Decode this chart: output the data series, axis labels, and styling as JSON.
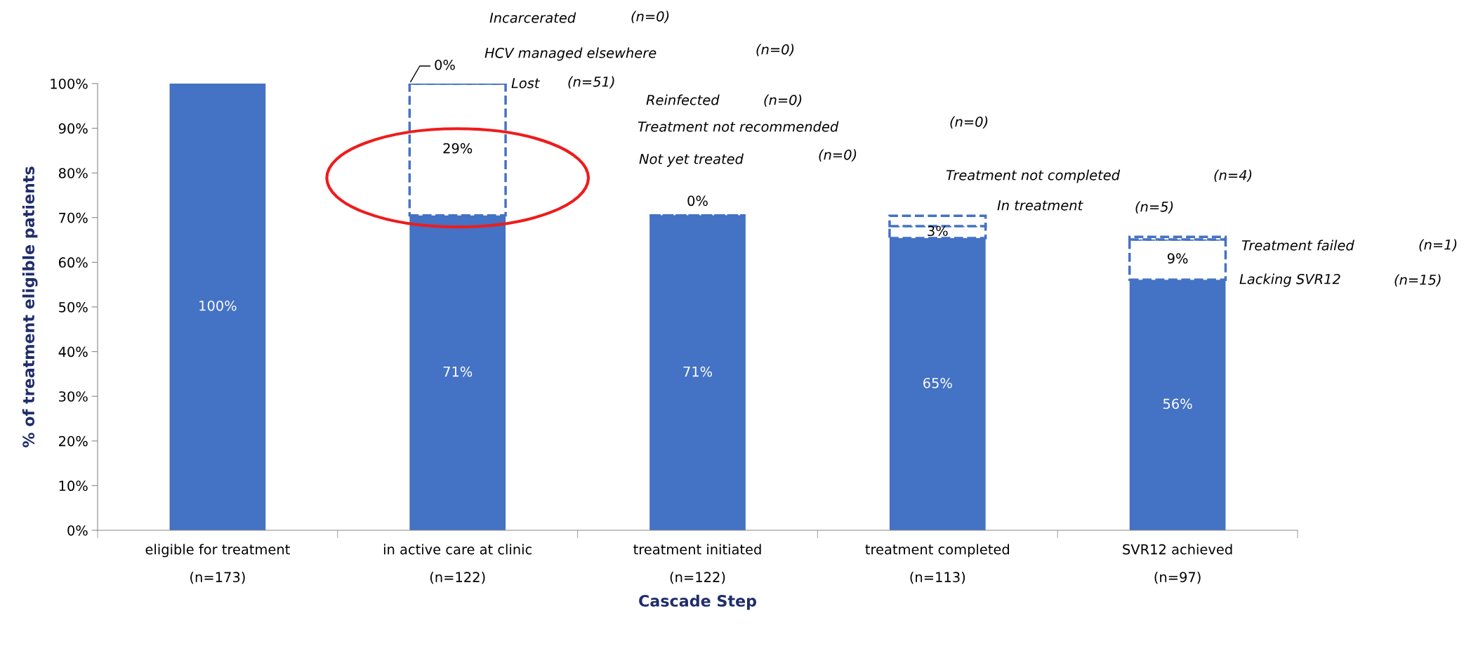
{
  "chart_data": {
    "type": "bar",
    "stacked": true,
    "xlabel": "Cascade Step",
    "ylabel": "% of treatment eligible patients",
    "categories": [
      "eligible for treatment\n(n=173)",
      "in active care at clinic\n(n=122)",
      "treatment initiated\n(n=122)",
      "treatment completed\n(n=113)",
      "SVR12 achieved\n(n=97)"
    ],
    "series": [
      {
        "color": "#4472c4",
        "line_style": "solid",
        "values": [
          100,
          70.5,
          70.5,
          65.4,
          56.1
        ],
        "value_labels": [
          "100%",
          "71%",
          "71%",
          "65%",
          "56%"
        ]
      },
      {
        "color": "#4472c4",
        "line_style": "dashed",
        "values": [
          null,
          29.5,
          0,
          2.7,
          9.0
        ],
        "value_labels": [
          null,
          "29%",
          "0%",
          "3%",
          "9%"
        ]
      },
      {
        "color": "#4472c4",
        "line_style": "dashed",
        "values": [
          null,
          0,
          null,
          2.3,
          0.6
        ],
        "value_labels": [
          null,
          "0%",
          null,
          null,
          null
        ]
      }
    ],
    "ylim": [
      0,
      100
    ],
    "yticks": [
      {
        "value": 0,
        "label": "0%"
      },
      {
        "value": 10,
        "label": "10%"
      },
      {
        "value": 20,
        "label": "20%"
      },
      {
        "value": 30,
        "label": "30%"
      },
      {
        "value": 40,
        "label": "40%"
      },
      {
        "value": 50,
        "label": "50%"
      },
      {
        "value": 60,
        "label": "60%"
      },
      {
        "value": 70,
        "label": "70%"
      },
      {
        "value": 80,
        "label": "80%"
      },
      {
        "value": 90,
        "label": "90%"
      },
      {
        "value": 100,
        "label": "100%"
      }
    ],
    "grid": false,
    "annotations": [
      "Incarcerated",
      "(n=0)",
      "HCV managed elsewhere",
      "(n=0)",
      "Lost",
      "(n=51)",
      "Reinfected",
      "(n=0)",
      "Treatment not recommended",
      "(n=0)",
      "Not yet treated",
      "(n=0)",
      "Treatment not completed",
      "(n=4)",
      "In treatment",
      "(n=5)",
      "Treatment failed",
      "(n=1)",
      "Lacking SVR12",
      "(n=15)"
    ]
  }
}
